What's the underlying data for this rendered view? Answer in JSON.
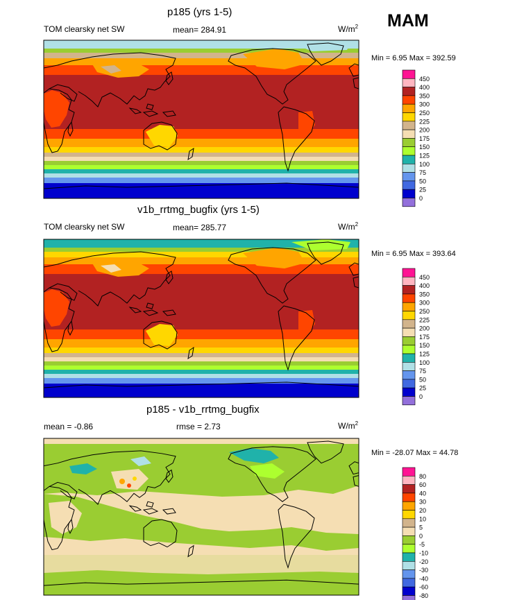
{
  "season": "MAM",
  "panels": [
    {
      "title": "p185 (yrs 1-5)",
      "left_label": "TOM clearsky net SW",
      "mean_label": "mean= 284.91",
      "units": "W/m",
      "units_exp": "2",
      "range_label": "Min =   6.95 Max = 392.59"
    },
    {
      "title": "v1b_rrtmg_bugfix (yrs 1-5)",
      "left_label": "TOM clearsky net SW",
      "mean_label": "mean= 285.77",
      "units": "W/m",
      "units_exp": "2",
      "range_label": "Min =   6.95 Max = 393.64"
    },
    {
      "title": "p185 - v1b_rrtmg_bugfix",
      "left_label": "mean =  -0.86",
      "mean_label": "rmse =   2.73",
      "units": "W/m",
      "units_exp": "2",
      "range_label": "Min = -28.07 Max =  44.78"
    }
  ],
  "chart_data": [
    {
      "type": "heatmap",
      "title": "p185 (yrs 1-5)",
      "variable": "TOM clearsky net SW",
      "mean": 284.91,
      "min": 6.95,
      "max": 392.59,
      "levels": [
        "450",
        "400",
        "350",
        "300",
        "250",
        "225",
        "200",
        "175",
        "150",
        "125",
        "100",
        "75",
        "50",
        "25",
        "0"
      ],
      "colors": [
        "#ff1493",
        "#ffb6c1",
        "#b22222",
        "#ff4500",
        "#ffa500",
        "#ffd700",
        "#d2b48c",
        "#f5deb3",
        "#9acd32",
        "#adff2f",
        "#20b2aa",
        "#b0e0e6",
        "#6495ed",
        "#4169e1",
        "#0000cd",
        "#9370db"
      ],
      "zonal_bands_north_to_south": [
        {
          "lat": "90N-78N",
          "level": 100
        },
        {
          "lat": "78N-70N",
          "level": 150
        },
        {
          "lat": "70N-62N",
          "level": 200
        },
        {
          "lat": "62N-54N",
          "level": 250
        },
        {
          "lat": "54N-44N",
          "level": 300
        },
        {
          "lat": "44N-10S",
          "level": 350
        },
        {
          "lat": "10S-28S",
          "level": 350
        },
        {
          "lat": "28S-36S",
          "level": 300
        },
        {
          "lat": "36S-42S",
          "level": 250
        },
        {
          "lat": "42S-48S",
          "level": 225
        },
        {
          "lat": "48S-52S",
          "level": 200
        },
        {
          "lat": "52S-56S",
          "level": 150
        },
        {
          "lat": "56S-60S",
          "level": 125
        },
        {
          "lat": "60S-64S",
          "level": 75
        },
        {
          "lat": "64S-90S",
          "level": 25
        }
      ]
    },
    {
      "type": "heatmap",
      "title": "v1b_rrtmg_bugfix (yrs 1-5)",
      "variable": "TOM clearsky net SW",
      "mean": 285.77,
      "min": 6.95,
      "max": 393.64,
      "levels": [
        "450",
        "400",
        "350",
        "300",
        "250",
        "225",
        "200",
        "175",
        "150",
        "125",
        "100",
        "75",
        "50",
        "25",
        "0"
      ],
      "colors": [
        "#ff1493",
        "#ffb6c1",
        "#b22222",
        "#ff4500",
        "#ffa500",
        "#ffd700",
        "#d2b48c",
        "#f5deb3",
        "#9acd32",
        "#adff2f",
        "#20b2aa",
        "#b0e0e6",
        "#6495ed",
        "#4169e1",
        "#0000cd",
        "#9370db"
      ],
      "zonal_bands_north_to_south": [
        {
          "lat": "90N-80N",
          "level": 125
        },
        {
          "lat": "80N-72N",
          "level": 175
        },
        {
          "lat": "72N-64N",
          "level": 225
        },
        {
          "lat": "64N-54N",
          "level": 250
        },
        {
          "lat": "54N-44N",
          "level": 300
        },
        {
          "lat": "44N-28S",
          "level": 350
        },
        {
          "lat": "28S-36S",
          "level": 300
        },
        {
          "lat": "36S-42S",
          "level": 250
        },
        {
          "lat": "42S-48S",
          "level": 225
        },
        {
          "lat": "48S-52S",
          "level": 200
        },
        {
          "lat": "52S-56S",
          "level": 150
        },
        {
          "lat": "56S-60S",
          "level": 125
        },
        {
          "lat": "60S-64S",
          "level": 75
        },
        {
          "lat": "64S-90S",
          "level": 25
        }
      ]
    },
    {
      "type": "heatmap",
      "title": "p185 - v1b_rrtmg_bugfix",
      "variable": "difference",
      "mean": -0.86,
      "rmse": 2.73,
      "min": -28.07,
      "max": 44.78,
      "levels": [
        "80",
        "60",
        "40",
        "30",
        "20",
        "10",
        "5",
        "0",
        "-5",
        "-10",
        "-20",
        "-30",
        "-40",
        "-60",
        "-80"
      ],
      "colors": [
        "#ff1493",
        "#ffb6c1",
        "#b22222",
        "#ff4500",
        "#ffa500",
        "#ffd700",
        "#d2b48c",
        "#f5deb3",
        "#9acd32",
        "#adff2f",
        "#20b2aa",
        "#b0e0e6",
        "#6495ed",
        "#4169e1",
        "#0000cd",
        "#9370db"
      ],
      "dominant_levels": {
        "ocean_midlatitudes": "0 to 5",
        "tropics_and_land": "-5 to 0",
        "northern_high_latitudes_land": "-10 to -20"
      }
    }
  ]
}
